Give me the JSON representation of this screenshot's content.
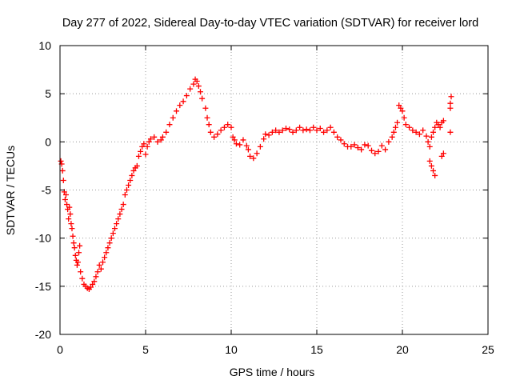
{
  "chart_data": {
    "type": "scatter",
    "title": "Day 277 of 2022, Sidereal Day-to-day VTEC variation (SDTVAR) for receiver lord",
    "xlabel": "GPS time / hours",
    "ylabel": "SDTVAR / TECUs",
    "xlim": [
      0,
      25
    ],
    "ylim": [
      -20,
      10
    ],
    "x_ticks": [
      0,
      5,
      10,
      15,
      20,
      25
    ],
    "y_ticks": [
      -20,
      -15,
      -10,
      -5,
      0,
      5,
      10
    ],
    "grid": true,
    "marker": "plus",
    "series": [
      {
        "name": "SDTVAR",
        "color": "#ff0000",
        "points": [
          [
            0.05,
            -2.0
          ],
          [
            0.1,
            -2.3
          ],
          [
            0.15,
            -3.0
          ],
          [
            0.2,
            -4.0
          ],
          [
            0.25,
            -5.2
          ],
          [
            0.3,
            -6.0
          ],
          [
            0.35,
            -5.5
          ],
          [
            0.4,
            -6.5
          ],
          [
            0.45,
            -7.0
          ],
          [
            0.5,
            -8.0
          ],
          [
            0.55,
            -6.8
          ],
          [
            0.6,
            -7.5
          ],
          [
            0.65,
            -8.5
          ],
          [
            0.7,
            -9.0
          ],
          [
            0.75,
            -9.8
          ],
          [
            0.8,
            -10.5
          ],
          [
            0.85,
            -11.0
          ],
          [
            0.9,
            -11.8
          ],
          [
            0.95,
            -12.3
          ],
          [
            1.0,
            -12.8
          ],
          [
            1.05,
            -12.5
          ],
          [
            1.1,
            -11.5
          ],
          [
            1.15,
            -10.8
          ],
          [
            1.2,
            -13.5
          ],
          [
            1.3,
            -14.2
          ],
          [
            1.4,
            -14.8
          ],
          [
            1.5,
            -15.0
          ],
          [
            1.6,
            -15.2
          ],
          [
            1.7,
            -15.3
          ],
          [
            1.8,
            -15.1
          ],
          [
            1.9,
            -14.8
          ],
          [
            2.0,
            -14.5
          ],
          [
            2.1,
            -14.0
          ],
          [
            2.2,
            -13.5
          ],
          [
            2.3,
            -12.8
          ],
          [
            2.4,
            -13.2
          ],
          [
            2.5,
            -12.5
          ],
          [
            2.6,
            -12.0
          ],
          [
            2.7,
            -11.5
          ],
          [
            2.8,
            -11.0
          ],
          [
            2.9,
            -10.5
          ],
          [
            3.0,
            -10.0
          ],
          [
            3.1,
            -9.5
          ],
          [
            3.2,
            -9.0
          ],
          [
            3.3,
            -8.5
          ],
          [
            3.4,
            -8.0
          ],
          [
            3.5,
            -7.5
          ],
          [
            3.6,
            -7.0
          ],
          [
            3.7,
            -6.5
          ],
          [
            3.8,
            -5.5
          ],
          [
            3.9,
            -5.0
          ],
          [
            4.0,
            -4.5
          ],
          [
            4.1,
            -4.0
          ],
          [
            4.2,
            -3.5
          ],
          [
            4.3,
            -3.0
          ],
          [
            4.4,
            -2.7
          ],
          [
            4.5,
            -2.5
          ],
          [
            4.6,
            -1.5
          ],
          [
            4.7,
            -1.0
          ],
          [
            4.8,
            -0.5
          ],
          [
            4.9,
            -0.2
          ],
          [
            5.0,
            -1.3
          ],
          [
            5.1,
            -0.5
          ],
          [
            5.2,
            0.0
          ],
          [
            5.3,
            0.3
          ],
          [
            5.5,
            0.5
          ],
          [
            5.7,
            0.0
          ],
          [
            5.9,
            0.2
          ],
          [
            6.0,
            0.5
          ],
          [
            6.2,
            1.0
          ],
          [
            6.4,
            1.8
          ],
          [
            6.6,
            2.5
          ],
          [
            6.8,
            3.2
          ],
          [
            7.0,
            3.8
          ],
          [
            7.2,
            4.2
          ],
          [
            7.4,
            4.8
          ],
          [
            7.6,
            5.5
          ],
          [
            7.8,
            6.0
          ],
          [
            7.9,
            6.5
          ],
          [
            8.0,
            6.3
          ],
          [
            8.1,
            5.8
          ],
          [
            8.2,
            5.2
          ],
          [
            8.3,
            4.5
          ],
          [
            8.5,
            3.5
          ],
          [
            8.6,
            2.5
          ],
          [
            8.7,
            1.8
          ],
          [
            8.8,
            1.0
          ],
          [
            9.0,
            0.5
          ],
          [
            9.2,
            0.8
          ],
          [
            9.4,
            1.2
          ],
          [
            9.6,
            1.5
          ],
          [
            9.8,
            1.8
          ],
          [
            10.0,
            1.5
          ],
          [
            10.1,
            0.5
          ],
          [
            10.2,
            0.2
          ],
          [
            10.3,
            -0.2
          ],
          [
            10.5,
            -0.3
          ],
          [
            10.7,
            0.2
          ],
          [
            10.9,
            -0.4
          ],
          [
            11.0,
            -0.8
          ],
          [
            11.1,
            -1.5
          ],
          [
            11.3,
            -1.7
          ],
          [
            11.5,
            -1.2
          ],
          [
            11.7,
            -0.5
          ],
          [
            11.9,
            0.3
          ],
          [
            12.0,
            0.8
          ],
          [
            12.2,
            0.7
          ],
          [
            12.4,
            1.0
          ],
          [
            12.6,
            1.2
          ],
          [
            12.8,
            1.0
          ],
          [
            13.0,
            1.2
          ],
          [
            13.2,
            1.4
          ],
          [
            13.4,
            1.3
          ],
          [
            13.6,
            1.0
          ],
          [
            13.8,
            1.2
          ],
          [
            14.0,
            1.5
          ],
          [
            14.2,
            1.2
          ],
          [
            14.4,
            1.3
          ],
          [
            14.6,
            1.2
          ],
          [
            14.8,
            1.5
          ],
          [
            15.0,
            1.2
          ],
          [
            15.2,
            1.4
          ],
          [
            15.4,
            1.0
          ],
          [
            15.6,
            1.2
          ],
          [
            15.8,
            1.5
          ],
          [
            16.0,
            1.0
          ],
          [
            16.2,
            0.5
          ],
          [
            16.4,
            0.2
          ],
          [
            16.6,
            -0.2
          ],
          [
            16.8,
            -0.5
          ],
          [
            17.0,
            -0.5
          ],
          [
            17.2,
            -0.3
          ],
          [
            17.4,
            -0.6
          ],
          [
            17.6,
            -0.8
          ],
          [
            17.8,
            -0.3
          ],
          [
            18.0,
            -0.4
          ],
          [
            18.2,
            -0.9
          ],
          [
            18.4,
            -1.2
          ],
          [
            18.6,
            -1.0
          ],
          [
            18.8,
            -0.4
          ],
          [
            19.0,
            -0.8
          ],
          [
            19.2,
            0.0
          ],
          [
            19.4,
            0.5
          ],
          [
            19.5,
            1.0
          ],
          [
            19.6,
            1.5
          ],
          [
            19.7,
            2.0
          ],
          [
            19.8,
            3.8
          ],
          [
            19.9,
            3.5
          ],
          [
            20.0,
            3.2
          ],
          [
            20.1,
            2.5
          ],
          [
            20.2,
            1.8
          ],
          [
            20.4,
            1.5
          ],
          [
            20.6,
            1.2
          ],
          [
            20.8,
            1.0
          ],
          [
            21.0,
            0.8
          ],
          [
            21.2,
            1.2
          ],
          [
            21.4,
            0.6
          ],
          [
            21.5,
            0.0
          ],
          [
            21.6,
            -0.5
          ],
          [
            21.7,
            0.5
          ],
          [
            21.8,
            1.0
          ],
          [
            21.9,
            1.5
          ],
          [
            22.0,
            2.0
          ],
          [
            22.1,
            1.8
          ],
          [
            22.2,
            1.5
          ],
          [
            22.3,
            2.0
          ],
          [
            22.4,
            2.2
          ],
          [
            21.6,
            -2.0
          ],
          [
            21.7,
            -2.5
          ],
          [
            21.8,
            -3.0
          ],
          [
            21.9,
            -3.5
          ],
          [
            22.3,
            -1.5
          ],
          [
            22.4,
            -1.2
          ],
          [
            22.8,
            1.0
          ],
          [
            22.8,
            3.5
          ],
          [
            22.8,
            4.0
          ],
          [
            22.85,
            4.7
          ]
        ]
      }
    ]
  }
}
